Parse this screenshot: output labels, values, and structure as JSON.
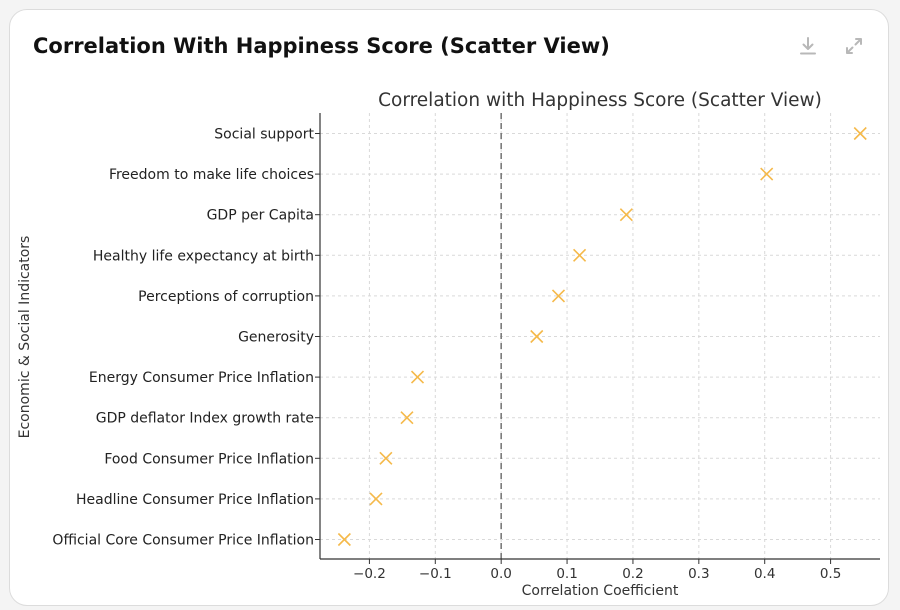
{
  "card": {
    "title": "Correlation With Happiness Score (Scatter View)",
    "download_icon": "download-icon",
    "expand_icon": "expand-icon"
  },
  "chart_data": {
    "type": "scatter",
    "title": "Correlation with Happiness Score (Scatter View)",
    "xlabel": "Correlation Coefficient",
    "ylabel": "Economic & Social Indicators",
    "xlim": [
      -0.275,
      0.575
    ],
    "xticks": [
      -0.2,
      -0.1,
      0.0,
      0.1,
      0.2,
      0.3,
      0.4,
      0.5
    ],
    "xtick_labels": [
      "−0.2",
      "−0.1",
      "0.0",
      "0.1",
      "0.2",
      "0.3",
      "0.4",
      "0.5"
    ],
    "grid": true,
    "reference_line_x": 0.0,
    "marker": "x",
    "marker_color": "#f5b94a",
    "points": [
      {
        "label": "Social support",
        "value": 0.545
      },
      {
        "label": "Freedom to make life choices",
        "value": 0.403
      },
      {
        "label": "GDP per Capita",
        "value": 0.19
      },
      {
        "label": "Healthy life expectancy at birth",
        "value": 0.119
      },
      {
        "label": "Perceptions of corruption",
        "value": 0.087
      },
      {
        "label": "Generosity",
        "value": 0.054
      },
      {
        "label": "Energy Consumer Price Inflation",
        "value": -0.127
      },
      {
        "label": "GDP deflator Index growth rate",
        "value": -0.143
      },
      {
        "label": "Food Consumer Price Inflation",
        "value": -0.175
      },
      {
        "label": "Headline Consumer Price Inflation",
        "value": -0.19
      },
      {
        "label": "Official Core Consumer Price Inflation",
        "value": -0.238
      }
    ]
  }
}
